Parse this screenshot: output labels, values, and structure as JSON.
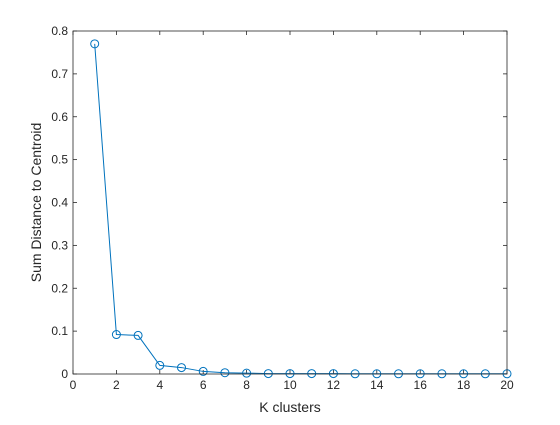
{
  "chart_data": {
    "type": "line",
    "title": "",
    "xlabel": "K clusters",
    "ylabel": "Sum Distance to Centroid",
    "xlim": [
      0,
      20
    ],
    "ylim": [
      0,
      0.8
    ],
    "xticks": [
      "0",
      "2",
      "4",
      "6",
      "8",
      "10",
      "12",
      "14",
      "16",
      "18",
      "20"
    ],
    "yticks": [
      "0",
      "0.1",
      "0.2",
      "0.3",
      "0.4",
      "0.5",
      "0.6",
      "0.7",
      "0.8"
    ],
    "grid": false,
    "legend": "none",
    "marker": "circle",
    "series": [
      {
        "color": "#0072BD",
        "x": [
          1,
          2,
          3,
          4,
          5,
          6,
          7,
          8,
          9,
          10,
          11,
          12,
          13,
          14,
          15,
          16,
          17,
          18,
          19,
          20
        ],
        "values": [
          0.77,
          0.092,
          0.09,
          0.02,
          0.015,
          0.006,
          0.003,
          0.002,
          0.001,
          0.001,
          0.001,
          0.001,
          0.0005,
          0.0005,
          0.0005,
          0.0005,
          0.0005,
          0.0005,
          0.0005,
          0.0005
        ]
      }
    ]
  }
}
